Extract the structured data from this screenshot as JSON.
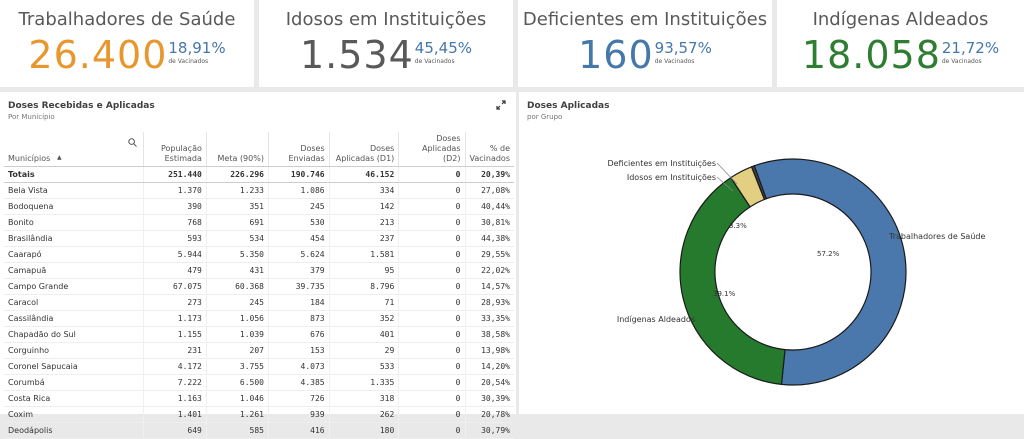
{
  "kpis": [
    {
      "title": "Trabalhadores de Saúde",
      "value": "26.400",
      "pct": "18,91%",
      "sub": "de Vacinados",
      "color": "#e8962e"
    },
    {
      "title": "Idosos em Instituições",
      "value": "1.534",
      "pct": "45,45%",
      "sub": "de Vacinados",
      "color": "#595959"
    },
    {
      "title": "Deficientes em Instituições",
      "value": "160",
      "pct": "93,57%",
      "sub": "de Vacinados",
      "color": "#4477aa"
    },
    {
      "title": "Indígenas Aldeados",
      "value": "18.058",
      "pct": "21,72%",
      "sub": "de Vacinados",
      "color": "#2e7d32"
    }
  ],
  "table_panel": {
    "title": "Doses Recebidas e Aplicadas",
    "subtitle": "Por Município",
    "headers": [
      "Municípios",
      "População Estimada",
      "Meta (90%)",
      "Doses Enviadas",
      "Doses Aplicadas (D1)",
      "Doses Aplicadas (D2)",
      "% de Vacinados"
    ],
    "totals": [
      "Totais",
      "251.440",
      "226.296",
      "190.746",
      "46.152",
      "0",
      "20,39%"
    ],
    "rows": [
      [
        "Bela Vista",
        "1.370",
        "1.233",
        "1.086",
        "334",
        "0",
        "27,08%"
      ],
      [
        "Bodoquena",
        "390",
        "351",
        "245",
        "142",
        "0",
        "40,44%"
      ],
      [
        "Bonito",
        "768",
        "691",
        "530",
        "213",
        "0",
        "30,81%"
      ],
      [
        "Brasilândia",
        "593",
        "534",
        "454",
        "237",
        "0",
        "44,38%"
      ],
      [
        "Caarapó",
        "5.944",
        "5.350",
        "5.624",
        "1.581",
        "0",
        "29,55%"
      ],
      [
        "Camapuã",
        "479",
        "431",
        "379",
        "95",
        "0",
        "22,02%"
      ],
      [
        "Campo Grande",
        "67.075",
        "60.368",
        "39.735",
        "8.796",
        "0",
        "14,57%"
      ],
      [
        "Caracol",
        "273",
        "245",
        "184",
        "71",
        "0",
        "28,93%"
      ],
      [
        "Cassilândia",
        "1.173",
        "1.056",
        "873",
        "352",
        "0",
        "33,35%"
      ],
      [
        "Chapadão do Sul",
        "1.155",
        "1.039",
        "676",
        "401",
        "0",
        "38,58%"
      ],
      [
        "Corguinho",
        "231",
        "207",
        "153",
        "29",
        "0",
        "13,98%"
      ],
      [
        "Coronel Sapucaia",
        "4.172",
        "3.755",
        "4.073",
        "533",
        "0",
        "14,20%"
      ],
      [
        "Corumbá",
        "7.222",
        "6.500",
        "4.385",
        "1.335",
        "0",
        "20,54%"
      ],
      [
        "Costa Rica",
        "1.163",
        "1.046",
        "726",
        "318",
        "0",
        "30,39%"
      ],
      [
        "Coxim",
        "1.401",
        "1.261",
        "939",
        "262",
        "0",
        "20,78%"
      ],
      [
        "Deodápolis",
        "649",
        "585",
        "416",
        "180",
        "0",
        "30,79%"
      ]
    ]
  },
  "chart_panel": {
    "title": "Doses Aplicadas",
    "subtitle": "por Grupo"
  },
  "chart_data": {
    "type": "pie",
    "donut": true,
    "title": "Doses Aplicadas",
    "subtitle": "por Grupo",
    "slices": [
      {
        "label": "Trabalhadores de Saúde",
        "value": 57.2,
        "value_label": "57.2%",
        "color": "#4a78ad"
      },
      {
        "label": "Indígenas Aldeados",
        "value": 39.1,
        "value_label": "39.1%",
        "color": "#267a2e"
      },
      {
        "label": "Idosos em Instituições",
        "value": 3.3,
        "value_label": "3.3%",
        "color": "#e2cf81"
      },
      {
        "label": "Deficientes em Instituições",
        "value": 0.4,
        "value_label": "",
        "color": "#444444"
      }
    ]
  }
}
